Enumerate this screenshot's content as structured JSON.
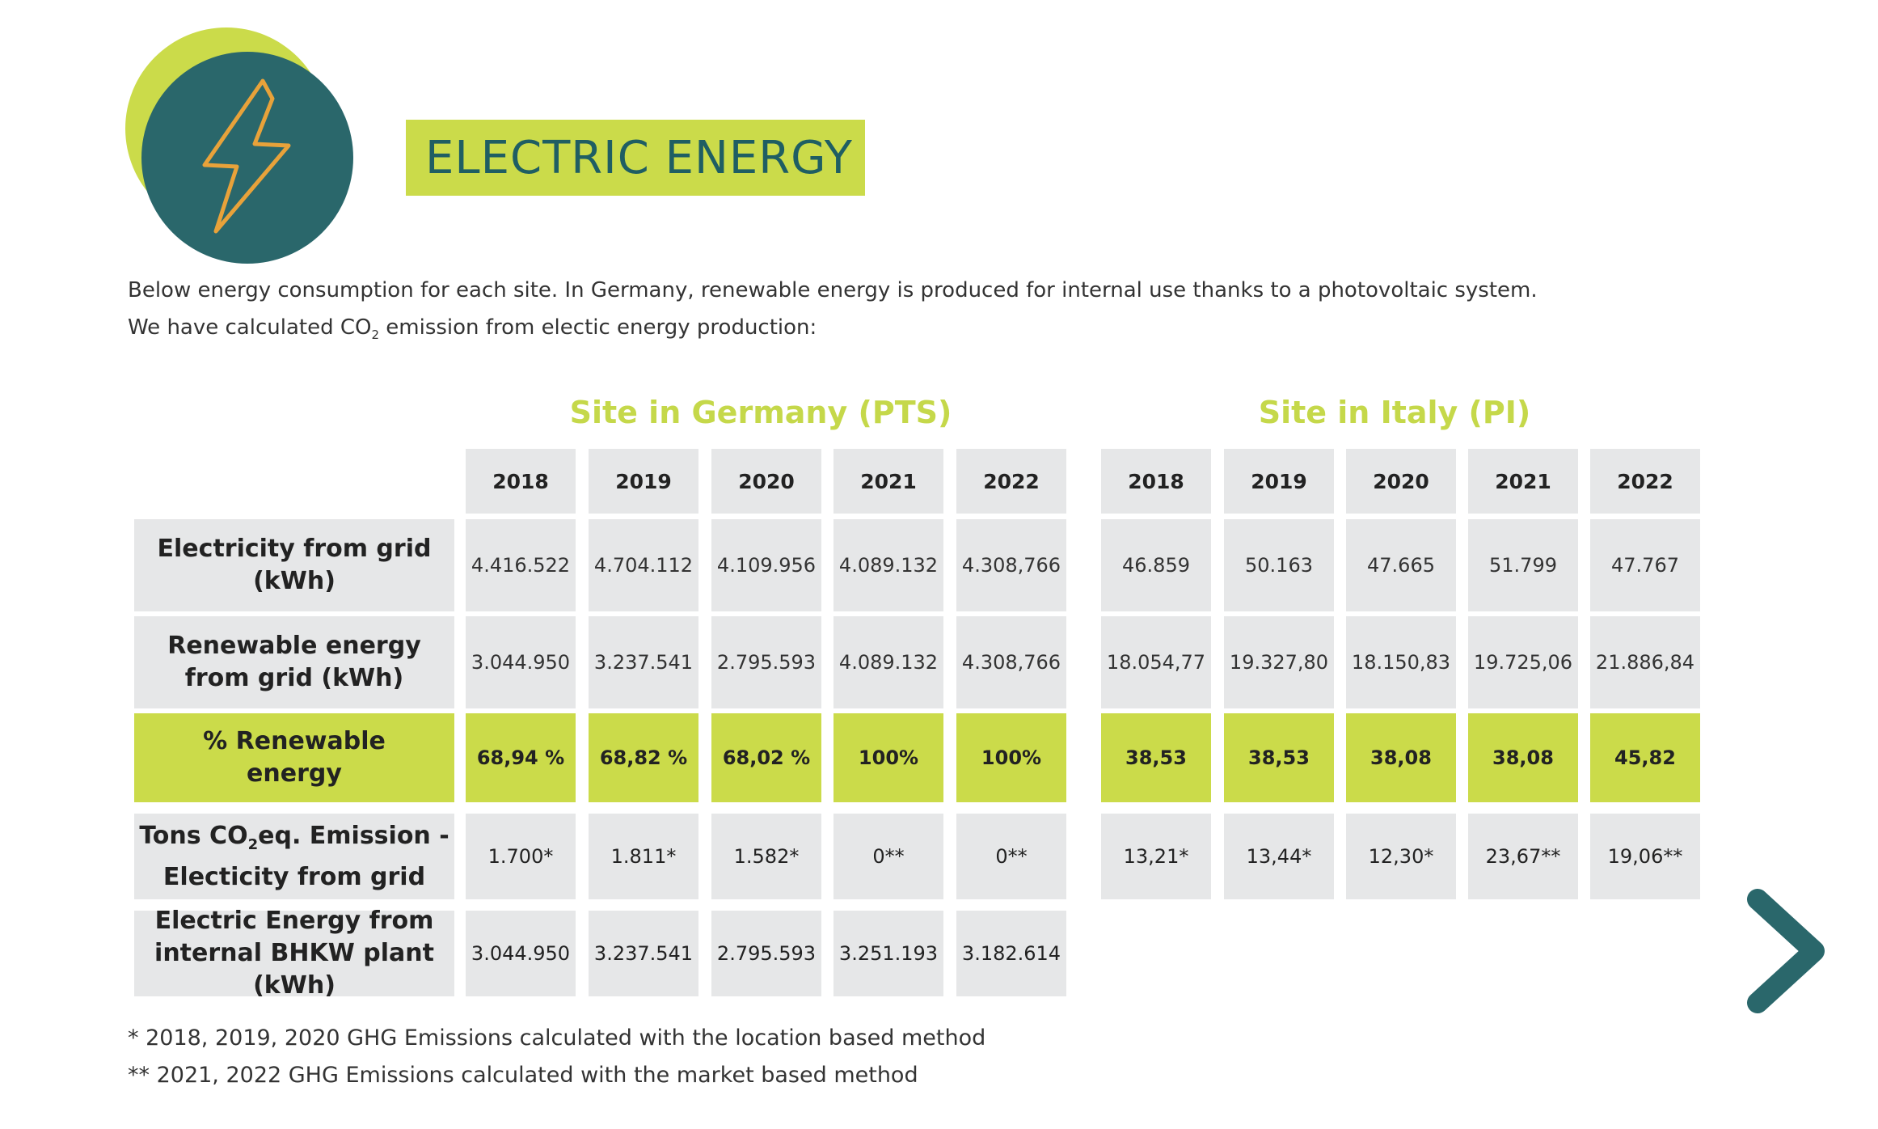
{
  "title": "ELECTRIC ENERGY",
  "intro": {
    "line1": "Below energy consumption for each site. In Germany, renewable energy is produced for internal use thanks to a photovoltaic system.",
    "line2_before": "We have calculated CO",
    "line2_sub": "2",
    "line2_after": " emission from electic energy production:"
  },
  "sites": {
    "germany": "Site in Germany (PTS)",
    "italy": "Site in Italy (PI)"
  },
  "years": [
    "2018",
    "2019",
    "2020",
    "2021",
    "2022"
  ],
  "row_labels": {
    "r1a": "Electricity from grid",
    "r1b": "(kWh)",
    "r2a": "Renewable energy",
    "r2b": "from grid (kWh)",
    "r3a": "% Renewable",
    "r3b": "energy",
    "r4a_before": "Tons CO",
    "r4a_sub": "2",
    "r4a_after": "eq. Emission -",
    "r4b": "Electicity from grid",
    "r5a": "Electric Energy from",
    "r5b": "internal BHKW plant (kWh)"
  },
  "germany_values": {
    "grid": [
      "4.416.522",
      "4.704.112",
      "4.109.956",
      "4.089.132",
      "4.308,766"
    ],
    "renewable": [
      "3.044.950",
      "3.237.541",
      "2.795.593",
      "4.089.132",
      "4.308,766"
    ],
    "percent": [
      "68,94 %",
      "68,82 %",
      "68,02 %",
      "100%",
      "100%"
    ],
    "tons": [
      "1.700*",
      "1.811*",
      "1.582*",
      "0**",
      "0**"
    ],
    "bhkw": [
      "3.044.950",
      "3.237.541",
      "2.795.593",
      "3.251.193",
      "3.182.614"
    ]
  },
  "italy_values": {
    "grid": [
      "46.859",
      "50.163",
      "47.665",
      "51.799",
      "47.767"
    ],
    "renewable": [
      "18.054,77",
      "19.327,80",
      "18.150,83",
      "19.725,06",
      "21.886,84"
    ],
    "percent": [
      "38,53",
      "38,53",
      "38,08",
      "38,08",
      "45,82"
    ],
    "tons": [
      "13,21*",
      "13,44*",
      "12,30*",
      "23,67**",
      "19,06**"
    ]
  },
  "footnotes": {
    "f1": "* 2018, 2019, 2020 GHG Emissions calculated with the location based method",
    "f2": "** 2021, 2022 GHG Emissions calculated with the market based method"
  },
  "colors": {
    "lime": "#cbdb4a",
    "teal": "#2a676b",
    "bolt": "#e8a23a",
    "cell": "#e6e7e8"
  },
  "icons": {
    "header": "lightning-bolt-icon",
    "next": "chevron-right-icon"
  }
}
